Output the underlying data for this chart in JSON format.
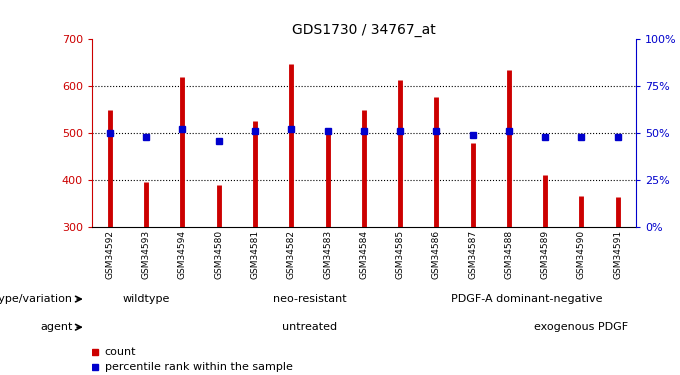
{
  "title": "GDS1730 / 34767_at",
  "samples": [
    "GSM34592",
    "GSM34593",
    "GSM34594",
    "GSM34580",
    "GSM34581",
    "GSM34582",
    "GSM34583",
    "GSM34584",
    "GSM34585",
    "GSM34586",
    "GSM34587",
    "GSM34588",
    "GSM34589",
    "GSM34590",
    "GSM34591"
  ],
  "counts": [
    550,
    395,
    620,
    390,
    525,
    648,
    510,
    550,
    613,
    578,
    478,
    635,
    410,
    365,
    363
  ],
  "percentile_ranks": [
    50,
    48,
    52,
    46,
    51,
    52,
    51,
    51,
    51,
    51,
    49,
    51,
    48,
    48,
    48
  ],
  "count_baseline": 300,
  "ylim_left": [
    300,
    700
  ],
  "ylim_right": [
    0,
    100
  ],
  "yticks_left": [
    300,
    400,
    500,
    600,
    700
  ],
  "yticks_right": [
    0,
    25,
    50,
    75,
    100
  ],
  "bar_color": "#cc0000",
  "dot_color": "#0000cc",
  "genotype_groups": [
    {
      "label": "wildtype",
      "start": 0,
      "end": 3,
      "color": "#ccffcc"
    },
    {
      "label": "neo-resistant",
      "start": 3,
      "end": 9,
      "color": "#66ee66"
    },
    {
      "label": "PDGF-A dominant-negative",
      "start": 9,
      "end": 15,
      "color": "#44dd44"
    }
  ],
  "agent_groups": [
    {
      "label": "untreated",
      "start": 0,
      "end": 12,
      "color": "#ffaaff"
    },
    {
      "label": "exogenous PDGF",
      "start": 12,
      "end": 15,
      "color": "#cc44cc"
    }
  ],
  "legend_count_color": "#cc0000",
  "legend_pct_color": "#0000cc",
  "background_color": "#ffffff",
  "label_genotype": "genotype/variation",
  "label_agent": "agent",
  "tick_label_area_color": "#dddddd"
}
